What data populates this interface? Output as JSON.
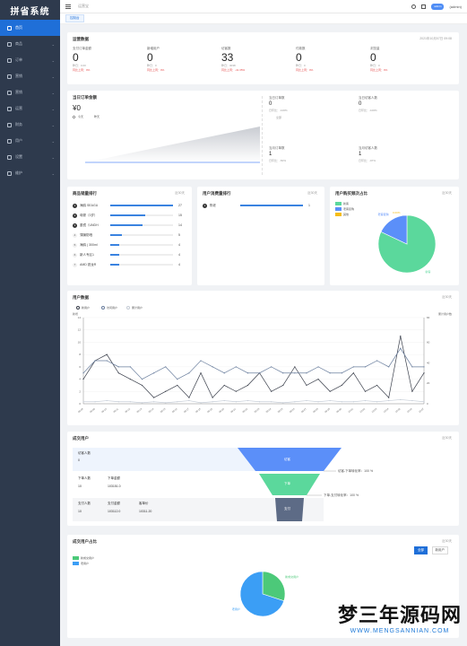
{
  "app": {
    "title": "拼省系统"
  },
  "sidebar": {
    "items": [
      {
        "label": "首页",
        "active": true
      },
      {
        "label": "商品"
      },
      {
        "label": "订单"
      },
      {
        "label": "营销"
      },
      {
        "label": "营销"
      },
      {
        "label": "运营"
      },
      {
        "label": "财务"
      },
      {
        "label": "用户"
      },
      {
        "label": "设置"
      },
      {
        "label": "维护"
      }
    ]
  },
  "topbar": {
    "breadcrumb": "运营宝",
    "user_tag": "admin",
    "user_name": "(admin)"
  },
  "tabs": [
    {
      "label": "控制台"
    }
  ],
  "overview": {
    "title": "运营数据",
    "updated": "2021年10月07日 09:08",
    "stats": [
      {
        "label": "支付订单金额",
        "value": "0",
        "sub1": "昨日：0.00",
        "sub2": "同比上周：0%"
      },
      {
        "label": "新增用户",
        "value": "0",
        "sub1": "昨日：0",
        "sub2": "同比上周：0%"
      },
      {
        "label": "访客数",
        "value": "33",
        "sub1": "昨日：3038",
        "sub2": "同比上周：-41.35%"
      },
      {
        "label": "付款数",
        "value": "0",
        "sub1": "昨日：0",
        "sub2": "同比上周：0%"
      },
      {
        "label": "浏览量",
        "value": "0",
        "sub1": "昨日：0",
        "sub2": "同比上周：0%"
      }
    ]
  },
  "today_amount": {
    "title": "当日订单金额",
    "value": "¥0",
    "legend_today": "今天",
    "legend_yesterday": "昨天",
    "right_stats": [
      {
        "label": "当日订单数",
        "value": "0",
        "sub": "日环比：-100%",
        "extra": "全部"
      },
      {
        "label": "当日访客人数",
        "value": "0",
        "sub": "日环比：-100%"
      },
      {
        "label": "当月订单数",
        "value": "1",
        "sub": "日环比：-50%"
      },
      {
        "label": "当月访客人数",
        "value": "1",
        "sub": "日环比：-97%"
      }
    ]
  },
  "goods_rank": {
    "title": "商品销量排行",
    "extra": "近30天",
    "rows": [
      {
        "rank": "1",
        "name": "海鸥 SEAGU",
        "value": 27
      },
      {
        "rank": "2",
        "name": "母婴（3岁）",
        "value": 15
      },
      {
        "rank": "3",
        "name": "墨镜（UNDH",
        "value": 14
      },
      {
        "rank": "4",
        "name": "薄膜防晒",
        "value": 5
      },
      {
        "rank": "5",
        "name": "海鸥 ( 300ml",
        "value": 4
      },
      {
        "rank": "6",
        "name": "新人专区1",
        "value": 4
      },
      {
        "rank": "7",
        "name": "AMD 锐龙R",
        "value": 4
      }
    ]
  },
  "user_rank": {
    "title": "用户消费量排行",
    "extra": "近30天",
    "rows": [
      {
        "rank": "1",
        "name": "陈老",
        "value": 1
      }
    ]
  },
  "user_ratio": {
    "title": "用户购买频次占比",
    "extra": "近30天",
    "chart_data": {
      "type": "pie",
      "categories": [
        "新客",
        "老客复购",
        "其他"
      ],
      "values": [
        82,
        18,
        0
      ],
      "colors": [
        "#5bd89c",
        "#5b8ff9",
        "#f6bd16"
      ],
      "labels": [
        "新客",
        "老客复购",
        "0.00%"
      ]
    }
  },
  "user_data": {
    "title": "用户数据",
    "extra": "近30天",
    "legend": [
      "新用户",
      "访问用户",
      "累计用户"
    ],
    "left_axis_name": "新增",
    "right_axis_name": "累计用户数",
    "chart_data": {
      "type": "line",
      "x": [
        "09-08",
        "09-09",
        "09-10",
        "09-11",
        "09-12",
        "09-13",
        "09-14",
        "09-15",
        "09-16",
        "09-17",
        "09-18",
        "09-19",
        "09-20",
        "09-21",
        "09-22",
        "09-23",
        "09-24",
        "09-25",
        "09-26",
        "09-27",
        "09-28",
        "09-29",
        "09-30",
        "10-01",
        "10-02",
        "10-03",
        "10-04",
        "10-05",
        "10-06",
        "10-07"
      ],
      "ylim": [
        0,
        14
      ],
      "y2lim": [
        0,
        84
      ],
      "yticks": [
        0,
        2,
        4,
        6,
        8,
        10,
        12,
        14
      ],
      "y2ticks": [
        0,
        20,
        40,
        60,
        84
      ],
      "series": [
        {
          "name": "新用户",
          "color": "#3a3f4b",
          "axis": "left",
          "values": [
            4,
            7,
            8,
            5,
            4,
            3,
            1,
            2,
            3,
            1,
            5,
            1,
            3,
            2,
            3,
            5,
            2,
            3,
            6,
            3,
            4,
            2,
            3,
            5,
            2,
            3,
            1,
            11,
            2,
            5
          ]
        },
        {
          "name": "访问用户",
          "color": "#6b7f9e",
          "axis": "left",
          "values": [
            5,
            7,
            7,
            6,
            6,
            4,
            5,
            6,
            4,
            5,
            7,
            6,
            5,
            6,
            5,
            5,
            6,
            5,
            5,
            5,
            6,
            5,
            5,
            6,
            6,
            7,
            6,
            9,
            6,
            6
          ]
        },
        {
          "name": "累计用户",
          "color": "#c5ccd6",
          "axis": "right",
          "values": [
            2,
            2,
            3,
            2,
            2,
            1,
            2,
            1,
            2,
            3,
            1,
            2,
            3,
            2,
            3,
            2,
            2,
            1,
            2,
            3,
            2,
            3,
            2,
            2,
            3,
            2,
            3,
            4,
            3,
            2
          ]
        }
      ]
    }
  },
  "conversion": {
    "title": "成交用户",
    "extra": "近30天",
    "visit_label": "访客人数",
    "visit_value": "0",
    "order_label": "下单人数",
    "order_value": "10",
    "order_amount_label": "下单金额",
    "order_amount_value": "103151.0",
    "pay_label": "支付人数",
    "pay_value": "10",
    "pay_amount_label": "支付金额",
    "pay_amount_value": "103112.0",
    "unit_label": "客单价",
    "unit_value": "10311.20",
    "funnel": [
      "访客",
      "下单",
      "支付"
    ],
    "rate1": "访客-下单转化率：100 %",
    "rate2": "下单-支付转化率：100 %"
  },
  "deal_ratio": {
    "title": "成交用户占比",
    "extra": "近30天",
    "btn_all": "全部",
    "btn_new": "新用户",
    "legend": [
      "新成交用户",
      "老用户"
    ],
    "chart_data": {
      "type": "pie",
      "categories": [
        "新成交用户",
        "老用户"
      ],
      "values": [
        30,
        70
      ],
      "colors": [
        "#4cc979",
        "#3b9ef5"
      ],
      "labels": [
        "新成交用户",
        "老用户"
      ]
    }
  },
  "watermark": {
    "big": "梦三年源码网",
    "small": "WWW.MENGSANNIAN.COM"
  }
}
